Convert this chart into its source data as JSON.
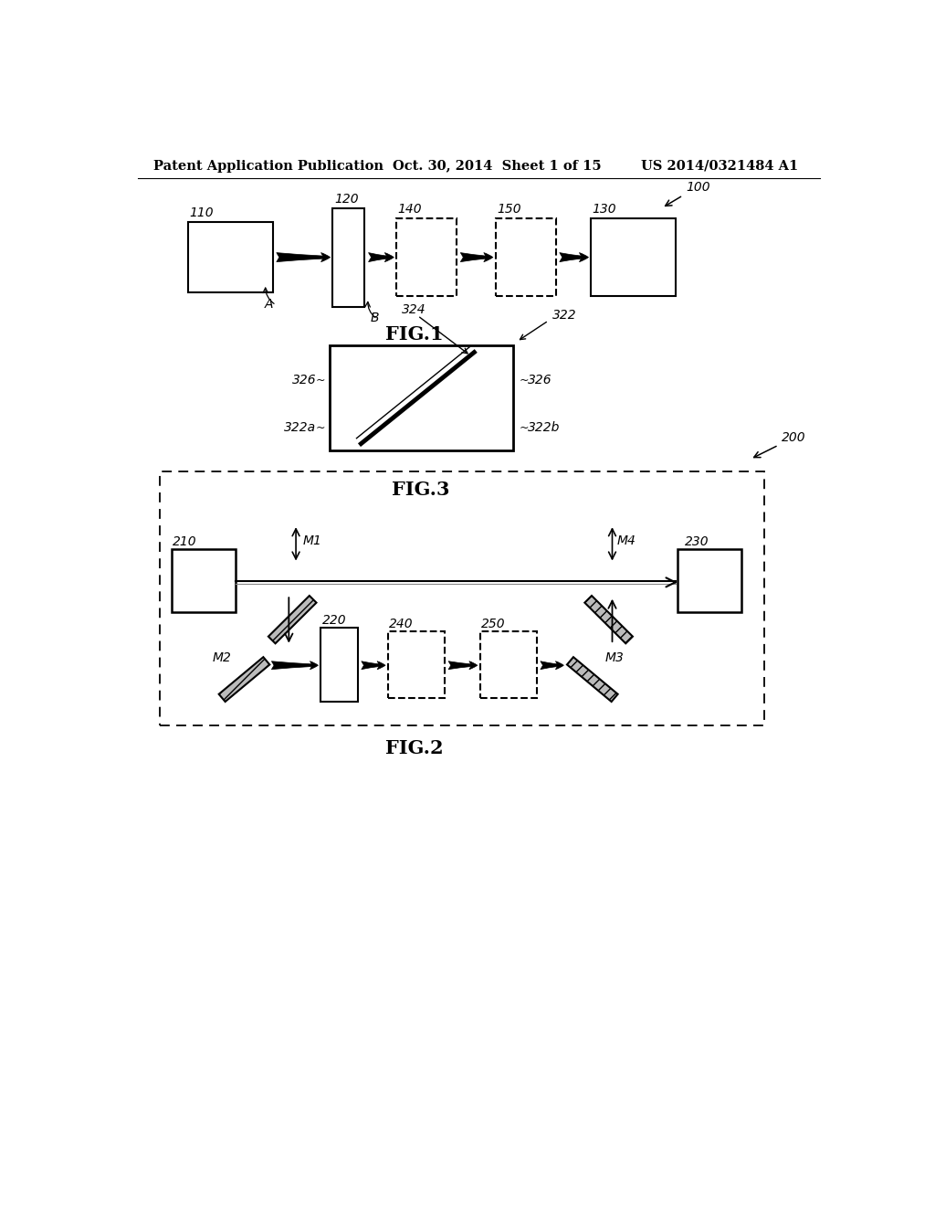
{
  "header_left": "Patent Application Publication",
  "header_mid": "Oct. 30, 2014  Sheet 1 of 15",
  "header_right": "US 2014/0321484 A1",
  "bg_color": "#ffffff"
}
